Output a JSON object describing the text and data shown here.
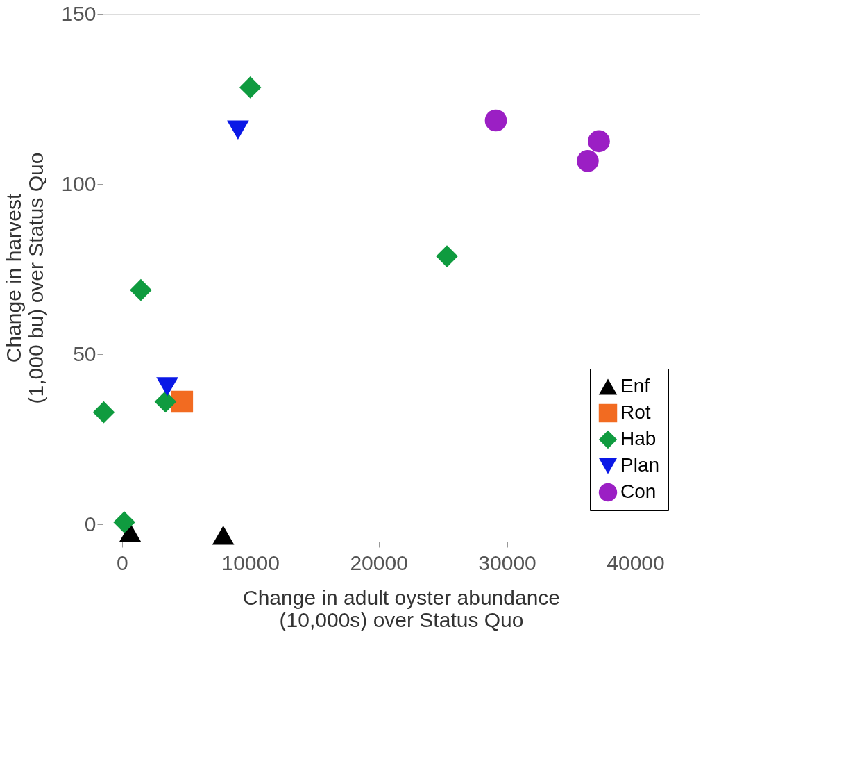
{
  "chart_data": {
    "type": "scatter",
    "xlabel": "Change in adult oyster abundance\n(10,000s) over Status Quo",
    "ylabel": "Change in harvest\n(1,000 bu) over Status Quo",
    "xlim": [
      -1500,
      45000
    ],
    "xticks": [
      0,
      10000,
      20000,
      30000,
      40000
    ],
    "ylim": [
      -5,
      150
    ],
    "yticks": [
      0,
      50,
      100,
      150
    ],
    "grid": false,
    "legend": "bottom right",
    "series": [
      {
        "name": "Enf",
        "color": "#000000",
        "marker": "triangle",
        "x": [
          640,
          7890
        ],
        "values": [
          -2.3,
          -3.1
        ]
      },
      {
        "name": "Rot",
        "color": "#f26b21",
        "marker": "square",
        "x": [
          4680
        ],
        "values": [
          36.1
        ]
      },
      {
        "name": "Hab",
        "color": "#0f9b3f",
        "marker": "diamond",
        "x": [
          -1420,
          180,
          1470,
          3390,
          10000,
          25320
        ],
        "values": [
          33,
          0.7,
          68.9,
          36.1,
          128.4,
          78.8
        ]
      },
      {
        "name": "Plan",
        "color": "#0a18e6",
        "marker": "triangle-down",
        "x": [
          3530,
          9040
        ],
        "values": [
          40.5,
          115.9
        ]
      },
      {
        "name": "Con",
        "color": "#9b1fc4",
        "marker": "circle",
        "x": [
          29130,
          37160,
          36290
        ],
        "values": [
          118.7,
          112.6,
          106.8
        ]
      }
    ]
  }
}
